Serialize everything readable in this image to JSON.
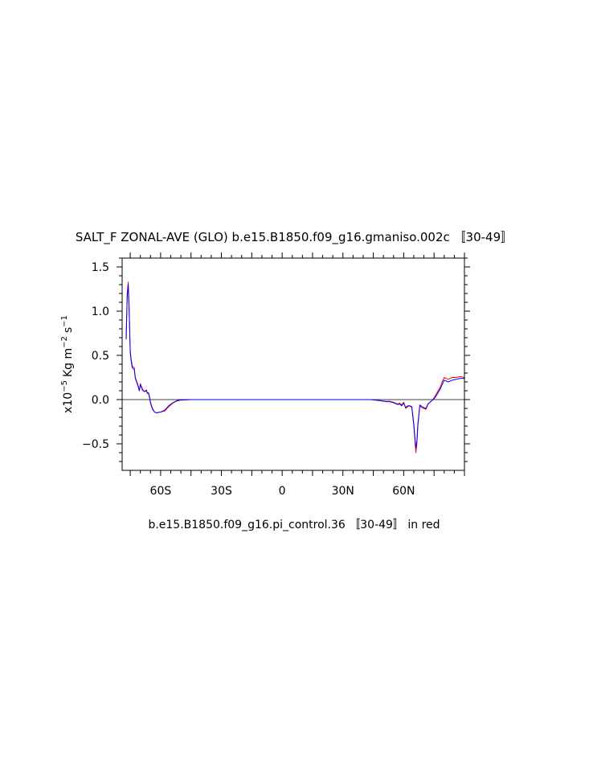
{
  "colors": {
    "control": "#ff0000",
    "experiment": "#0000ff",
    "axis": "#000000"
  },
  "chart_data": {
    "type": "line",
    "title": "SALT_F ZONAL-AVE (GLO) b.e15.B1850.f09_g16.gmaniso.002c 〚30-49〛",
    "subtitle": "b.e15.B1850.f09_g16.pi_control.36 〚30-49〛 in red",
    "ylabel_prefix": "x10",
    "ylabel_exp": "−5",
    "ylabel_unit_kg": "Kg m",
    "ylabel_exp_m": "−2",
    "ylabel_unit_s": "s",
    "ylabel_exp_s": "−1",
    "xlabel": "",
    "xlim": [
      -79,
      90
    ],
    "ylim": [
      -0.8,
      1.6
    ],
    "grid": false,
    "zero_line": true,
    "x_ticks": [
      {
        "value": -60,
        "label": "60S"
      },
      {
        "value": -30,
        "label": "30S"
      },
      {
        "value": 0,
        "label": "0"
      },
      {
        "value": 30,
        "label": "30N"
      },
      {
        "value": 60,
        "label": "60N"
      }
    ],
    "y_ticks": [
      {
        "value": 1.5,
        "label": "1.5"
      },
      {
        "value": 1.0,
        "label": "1.0"
      },
      {
        "value": 0.5,
        "label": "0.5"
      },
      {
        "value": 0.0,
        "label": "0.0"
      },
      {
        "value": -0.5,
        "label": "−0.5"
      }
    ],
    "series": [
      {
        "color": "#ff0000",
        "x": [
          -77,
          -76.5,
          -76,
          -75.5,
          -75,
          -74.5,
          -74,
          -73,
          -72.5,
          -72,
          -71,
          -70.5,
          -70,
          -69,
          -68,
          -67,
          -66.5,
          -66,
          -65.5,
          -65,
          -64,
          -63,
          -62,
          -60,
          -58,
          -56,
          -54,
          -52,
          -50,
          -45,
          -40,
          -30,
          -20,
          -10,
          0,
          10,
          20,
          30,
          40,
          44,
          48,
          50,
          52,
          53,
          54,
          55,
          56,
          57,
          58,
          59,
          60,
          61,
          62,
          63,
          64,
          65,
          66,
          66.5,
          67,
          68,
          69,
          70,
          71,
          72,
          73,
          74,
          75,
          76,
          77,
          78,
          79,
          80,
          82,
          84,
          86,
          88,
          90
        ],
        "y": [
          0.7,
          1.2,
          1.33,
          1.0,
          0.55,
          0.45,
          0.38,
          0.36,
          0.25,
          0.22,
          0.15,
          0.1,
          0.18,
          0.12,
          0.09,
          0.11,
          0.07,
          0.08,
          0.04,
          -0.03,
          -0.1,
          -0.14,
          -0.15,
          -0.14,
          -0.13,
          -0.08,
          -0.04,
          -0.015,
          -0.005,
          0,
          0,
          0,
          0,
          0,
          0,
          0,
          0,
          0,
          0,
          0,
          -0.01,
          -0.015,
          -0.02,
          -0.018,
          -0.025,
          -0.03,
          -0.04,
          -0.05,
          -0.04,
          -0.06,
          -0.03,
          -0.1,
          -0.08,
          -0.07,
          -0.09,
          -0.3,
          -0.6,
          -0.5,
          -0.3,
          -0.07,
          -0.09,
          -0.1,
          -0.11,
          -0.05,
          -0.03,
          -0.01,
          0.02,
          0.06,
          0.1,
          0.14,
          0.2,
          0.25,
          0.23,
          0.25,
          0.25,
          0.26,
          0.25
        ]
      },
      {
        "color": "#0000ff",
        "x": [
          -77,
          -76.5,
          -76,
          -75.5,
          -75,
          -74.5,
          -74,
          -73,
          -72.5,
          -72,
          -71,
          -70.5,
          -70,
          -69,
          -68,
          -67,
          -66.5,
          -66,
          -65.5,
          -65,
          -64,
          -63,
          -62,
          -60,
          -58,
          -56,
          -54,
          -52,
          -50,
          -45,
          -40,
          -30,
          -20,
          -10,
          0,
          10,
          20,
          30,
          40,
          44,
          48,
          50,
          52,
          53,
          54,
          55,
          56,
          57,
          58,
          59,
          60,
          61,
          62,
          63,
          64,
          65,
          66,
          66.5,
          67,
          68,
          69,
          70,
          71,
          72,
          73,
          74,
          75,
          76,
          77,
          78,
          79,
          80,
          82,
          84,
          86,
          88,
          90
        ],
        "y": [
          0.68,
          1.15,
          1.3,
          0.98,
          0.53,
          0.43,
          0.36,
          0.34,
          0.24,
          0.21,
          0.14,
          0.1,
          0.17,
          0.11,
          0.09,
          0.1,
          0.07,
          0.07,
          0.03,
          -0.04,
          -0.11,
          -0.14,
          -0.15,
          -0.14,
          -0.12,
          -0.07,
          -0.035,
          -0.012,
          -0.004,
          0,
          0,
          0,
          0,
          0,
          0,
          0,
          0,
          0,
          0,
          0,
          -0.012,
          -0.018,
          -0.025,
          -0.022,
          -0.03,
          -0.035,
          -0.045,
          -0.055,
          -0.05,
          -0.07,
          -0.04,
          -0.09,
          -0.07,
          -0.07,
          -0.08,
          -0.28,
          -0.55,
          -0.47,
          -0.28,
          -0.06,
          -0.08,
          -0.09,
          -0.1,
          -0.05,
          -0.03,
          -0.01,
          0.01,
          0.04,
          0.08,
          0.12,
          0.17,
          0.22,
          0.2,
          0.22,
          0.23,
          0.24,
          0.24
        ]
      }
    ]
  }
}
